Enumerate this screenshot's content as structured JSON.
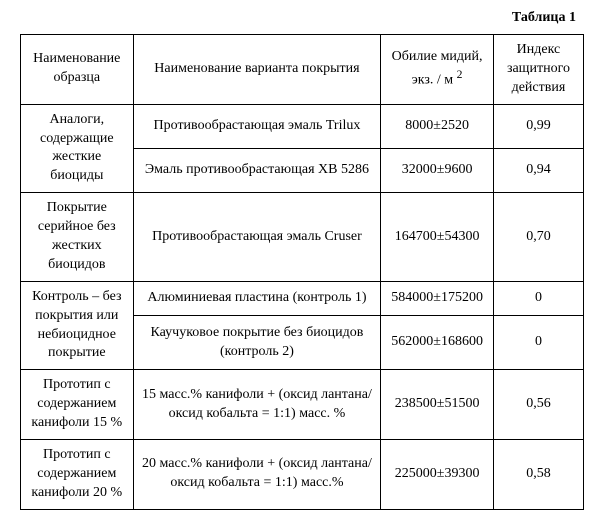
{
  "caption": "Таблица 1",
  "columns": {
    "c1": "Наименование образца",
    "c2": "Наименование варианта покрытия",
    "c3_line1": "Обилие мидий,",
    "c3_line2": "экз. / м",
    "c3_sup": "2",
    "c4": "Индекс защитного действия"
  },
  "groups": [
    {
      "sample": "Аналоги, содержащие жесткие биоциды",
      "rows": [
        {
          "variant": "Противообрастающая эмаль Trilux",
          "abundance": "8000±2520",
          "index": "0,99"
        },
        {
          "variant": "Эмаль противообрастающая ХВ 5286",
          "abundance": "32000±9600",
          "index": "0,94"
        }
      ]
    },
    {
      "sample": "Покрытие серийное без жестких биоцидов",
      "rows": [
        {
          "variant": "Противообрастающая эмаль Cruser",
          "abundance": "164700±54300",
          "index": "0,70"
        }
      ]
    },
    {
      "sample": "Контроль – без покрытия или небиоцидное покрытие",
      "rows": [
        {
          "variant": "Алюминиевая пластина (контроль 1)",
          "abundance": "584000±175200",
          "index": "0"
        },
        {
          "variant": "Каучуковое покрытие без биоцидов (контроль 2)",
          "abundance": "562000±168600",
          "index": "0"
        }
      ]
    },
    {
      "sample": "Прототип с содержанием канифоли 15 %",
      "rows": [
        {
          "variant": "15 масс.% канифоли + (оксид лантана/оксид кобальта = 1:1) масс. %",
          "abundance": "238500±51500",
          "index": "0,56"
        }
      ]
    },
    {
      "sample": "Прототип с содержанием канифоли 20 %",
      "rows": [
        {
          "variant": "20 масс.% канифоли + (оксид лантана/ оксид кобальта = 1:1) масс.%",
          "abundance": "225000±39300",
          "index": "0,58"
        }
      ]
    }
  ]
}
